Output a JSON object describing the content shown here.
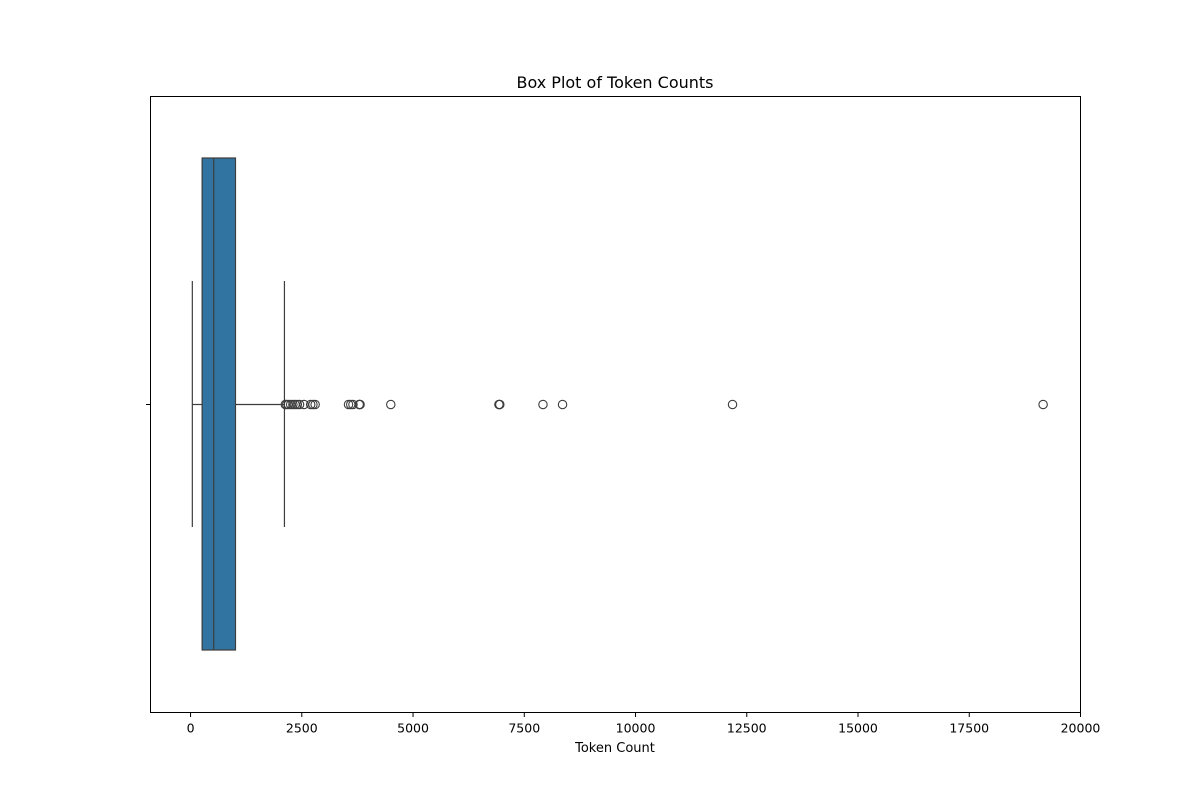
{
  "chart_data": {
    "type": "box",
    "title": "Box Plot of Token Counts",
    "xlabel": "Token Count",
    "ylabel": "",
    "orientation": "horizontal",
    "xlim": [
      -900,
      20000
    ],
    "xticks": [
      0,
      2500,
      5000,
      7500,
      10000,
      12500,
      15000,
      17500,
      20000
    ],
    "xtick_labels": [
      "0",
      "2500",
      "5000",
      "7500",
      "10000",
      "12500",
      "15000",
      "17500",
      "20000"
    ],
    "grid": false,
    "box": {
      "whisker_low": 40,
      "q1": 260,
      "median": 520,
      "q3": 1010,
      "whisker_high": 2110,
      "color": "#3274a1",
      "edge_color": "#3d3d3d"
    },
    "outliers": [
      2130,
      2160,
      2200,
      2250,
      2300,
      2350,
      2400,
      2450,
      2550,
      2700,
      2750,
      2800,
      3550,
      3600,
      3650,
      3790,
      3800,
      3810,
      4500,
      6930,
      6940,
      6950,
      7920,
      8360,
      12180,
      19160
    ]
  }
}
